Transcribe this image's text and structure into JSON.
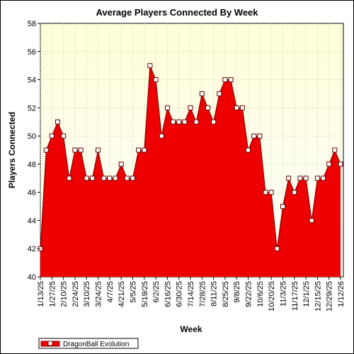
{
  "chart_data": {
    "type": "area",
    "title": "Average Players Connected By Week",
    "xlabel": "Week",
    "ylabel": "Players Connected",
    "ylim": [
      40,
      58
    ],
    "ytick_step": 2,
    "grid": true,
    "legend_position": "bottom-left",
    "x_tick_labels": [
      "1/13/25",
      "1/27/25",
      "2/10/25",
      "2/24/25",
      "3/10/25",
      "3/24/25",
      "4/7/25",
      "4/21/25",
      "5/5/25",
      "5/19/25",
      "6/2/25",
      "6/16/25",
      "6/30/25",
      "7/14/25",
      "7/28/25",
      "8/11/25",
      "8/25/25",
      "9/8/25",
      "9/22/25",
      "10/6/25",
      "10/20/25",
      "11/3/25",
      "11/17/25",
      "12/1/25",
      "12/15/25",
      "12/29/25",
      "1/12/26"
    ],
    "series": [
      {
        "name": "DragonBall Evolution",
        "color": "#ee0000",
        "x": [
          "1/13/25",
          "1/20/25",
          "1/27/25",
          "2/3/25",
          "2/10/25",
          "2/17/25",
          "2/24/25",
          "3/3/25",
          "3/10/25",
          "3/17/25",
          "3/24/25",
          "3/31/25",
          "4/7/25",
          "4/14/25",
          "4/21/25",
          "4/28/25",
          "5/5/25",
          "5/12/25",
          "5/19/25",
          "5/26/25",
          "6/2/25",
          "6/9/25",
          "6/16/25",
          "6/23/25",
          "6/30/25",
          "7/7/25",
          "7/14/25",
          "7/21/25",
          "7/28/25",
          "8/4/25",
          "8/11/25",
          "8/18/25",
          "8/25/25",
          "9/1/25",
          "9/8/25",
          "9/15/25",
          "9/22/25",
          "9/29/25",
          "10/6/25",
          "10/13/25",
          "10/20/25",
          "10/27/25",
          "11/3/25",
          "11/10/25",
          "11/17/25",
          "11/24/25",
          "12/1/25",
          "12/8/25",
          "12/15/25",
          "12/22/25",
          "12/29/25",
          "1/5/26",
          "1/12/26"
        ],
        "values": [
          42,
          49,
          50,
          51,
          50,
          47,
          49,
          49,
          47,
          47,
          49,
          47,
          47,
          47,
          48,
          47,
          47,
          49,
          49,
          55,
          54,
          50,
          52,
          51,
          51,
          51,
          52,
          51,
          53,
          52,
          51,
          53,
          54,
          54,
          52,
          52,
          49,
          50,
          50,
          46,
          46,
          42,
          45,
          47,
          46,
          47,
          47,
          44,
          47,
          47,
          48,
          49,
          48
        ]
      }
    ]
  }
}
